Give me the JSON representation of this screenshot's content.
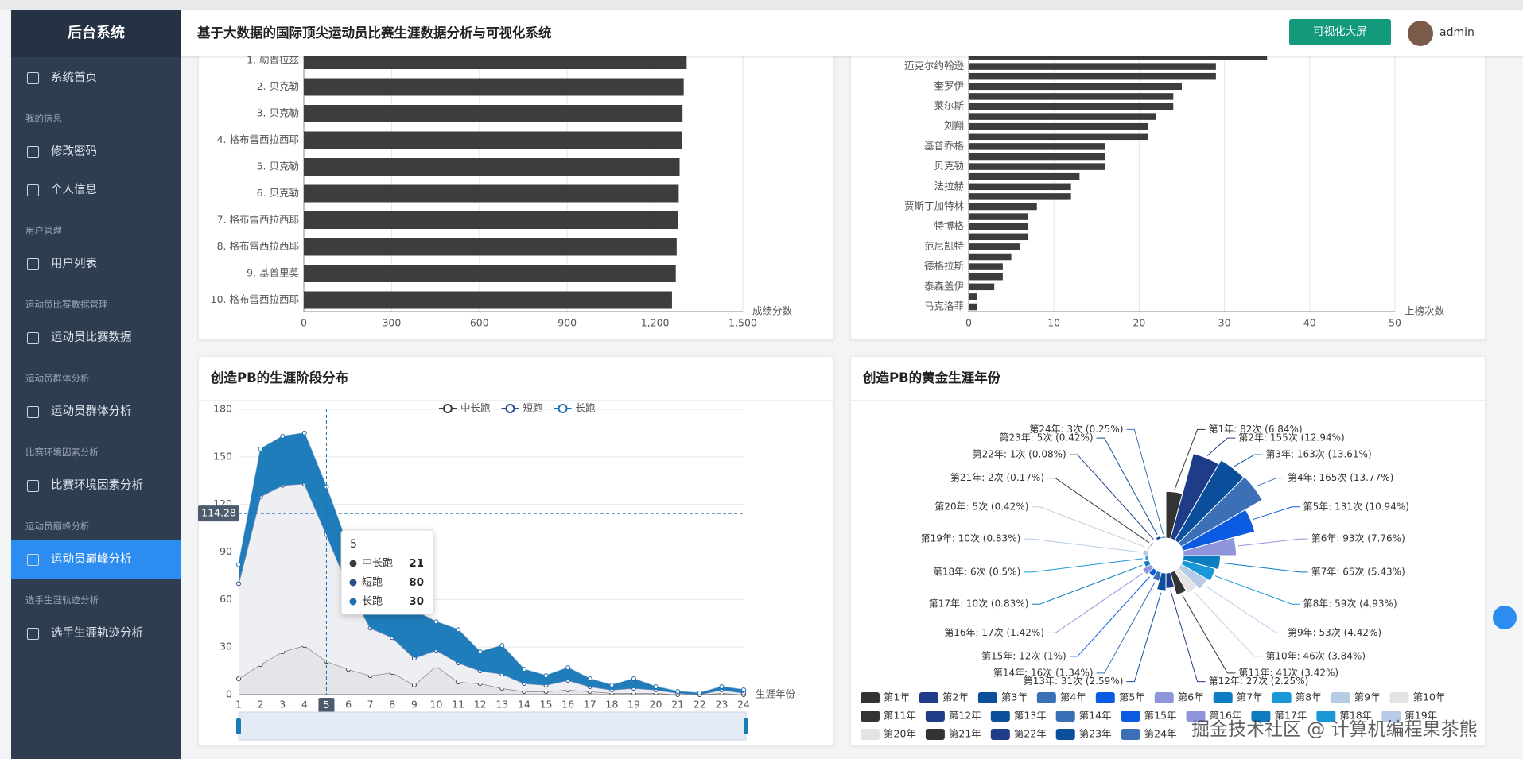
{
  "sidebar": {
    "title": "后台系统",
    "menu": [
      {
        "kind": "item",
        "label": "系统首页"
      },
      {
        "kind": "section",
        "label": "我的信息"
      },
      {
        "kind": "item",
        "label": "修改密码"
      },
      {
        "kind": "item",
        "label": "个人信息"
      },
      {
        "kind": "section",
        "label": "用户管理"
      },
      {
        "kind": "item",
        "label": "用户列表"
      },
      {
        "kind": "section",
        "label": "运动员比赛数据管理"
      },
      {
        "kind": "item",
        "label": "运动员比赛数据"
      },
      {
        "kind": "section",
        "label": "运动员群体分析"
      },
      {
        "kind": "item",
        "label": "运动员群体分析"
      },
      {
        "kind": "section",
        "label": "比赛环境因素分析"
      },
      {
        "kind": "item",
        "label": "比赛环境因素分析"
      },
      {
        "kind": "section",
        "label": "运动员巅峰分析"
      },
      {
        "kind": "item",
        "label": "运动员巅峰分析",
        "active": true
      },
      {
        "kind": "section",
        "label": "选手生涯轨迹分析"
      },
      {
        "kind": "item",
        "label": "选手生涯轨迹分析"
      }
    ]
  },
  "header": {
    "title": "基于大数据的国际顶尖运动员比赛生涯数据分析与可视化系统",
    "button": "可视化大屏",
    "user": "admin"
  },
  "watermark": "掘金技术社区 @ 计算机编程果茶熊",
  "chart_data": [
    {
      "type": "hbar",
      "categories": [
        "1. 勒普拉兹",
        "2. 贝克勒",
        "3. 贝克勒",
        "4. 格布雷西拉西耶",
        "5. 贝克勒",
        "6. 贝克勒",
        "7. 格布雷西拉西耶",
        "8. 格布雷西拉西耶",
        "9. 基普里莫",
        "10. 格布雷西拉西耶"
      ],
      "values": [
        1308,
        1298,
        1294,
        1291,
        1284,
        1281,
        1278,
        1274,
        1271,
        1258
      ],
      "color": "#3d3d3d",
      "xlim": [
        0,
        1500
      ],
      "xticks": [
        0,
        300,
        600,
        900,
        {
          "value": 1200,
          "label": "1,200"
        },
        {
          "value": 1500,
          "label": "1,500"
        }
      ],
      "x_label": "成绩分数",
      "grid": true
    },
    {
      "type": "hbar",
      "categories": [
        null,
        "迈克尔约翰逊",
        null,
        "奎罗伊",
        null,
        "莱尔斯",
        null,
        "刘翔",
        null,
        "基普乔格",
        null,
        "贝克勒",
        null,
        "法拉赫",
        null,
        "贾斯丁加特林",
        null,
        "特博格",
        null,
        "范尼凯特",
        null,
        "德格拉斯",
        null,
        "泰森盖伊",
        null,
        "马克洛菲"
      ],
      "values": [
        35,
        29,
        29,
        25,
        24,
        24,
        22,
        21,
        21,
        16,
        16,
        16,
        13,
        12,
        12,
        8,
        7,
        7,
        7,
        6,
        5,
        4,
        4,
        3,
        1,
        1
      ],
      "color": "#3d3d3d",
      "xlim": [
        0,
        50
      ],
      "xticks": [
        0,
        10,
        20,
        30,
        40,
        50
      ],
      "x_label": "上榜次数",
      "grid": true
    },
    {
      "type": "area",
      "title": "创造PB的生涯阶段分布",
      "stacked": true,
      "categories": [
        "1",
        "2",
        "3",
        "4",
        "5",
        "6",
        "7",
        "8",
        "9",
        "10",
        "11",
        "12",
        "13",
        "14",
        "15",
        "16",
        "17",
        "18",
        "19",
        "20",
        "21",
        "22",
        "23",
        "24"
      ],
      "series": [
        {
          "name": "中长跑",
          "color": "#3a3a3a",
          "area_color": "#e4e4e9",
          "values": [
            10,
            19,
            27,
            31,
            21,
            16,
            12,
            14,
            6,
            18,
            8,
            7,
            4,
            2,
            2,
            3,
            2,
            1,
            1,
            1,
            0,
            0,
            1,
            0
          ]
        },
        {
          "name": "短跑",
          "color": "#2d4a8a",
          "area_color": "#eeeff3",
          "values": [
            60,
            106,
            105,
            102,
            80,
            52,
            30,
            22,
            17,
            10,
            12,
            8,
            9,
            5,
            4,
            6,
            3,
            2,
            3,
            2,
            1,
            0,
            2,
            1
          ]
        },
        {
          "name": "长跑",
          "color": "#1a6fb0",
          "area_color": "#1f7dbb",
          "values": [
            12,
            30,
            31,
            32,
            30,
            25,
            23,
            23,
            30,
            18,
            21,
            12,
            18,
            9,
            6,
            8,
            5,
            3,
            6,
            2,
            1,
            1,
            2,
            2
          ]
        }
      ],
      "ylim": [
        0,
        180
      ],
      "yticks": [
        0,
        30,
        60,
        90,
        120,
        150,
        180
      ],
      "x_label": "生涯年份",
      "grid": true,
      "tooltip_index": 4,
      "pointer_value": 114.28
    },
    {
      "type": "rose",
      "title": "创造PB的黄金生涯年份",
      "categories": [
        "第1年",
        "第2年",
        "第3年",
        "第4年",
        "第5年",
        "第6年",
        "第7年",
        "第8年",
        "第9年",
        "第10年",
        "第11年",
        "第12年",
        "第13年",
        "第14年",
        "第15年",
        "第16年",
        "第17年",
        "第18年",
        "第19年",
        "第20年",
        "第21年",
        "第22年",
        "第23年",
        "第24年"
      ],
      "values": [
        82,
        155,
        163,
        165,
        131,
        93,
        65,
        59,
        53,
        46,
        41,
        27,
        31,
        16,
        12,
        17,
        10,
        6,
        10,
        5,
        2,
        1,
        5,
        3
      ],
      "value_labels": [
        "第1年: 82次 (6.84%)",
        "第2年: 155次 (12.94%)",
        "第3年: 163次 (13.61%)",
        "第4年: 165次 (13.77%)",
        "第5年: 131次 (10.94%)",
        "第6年: 93次 (7.76%)",
        "第7年: 65次 (5.43%)",
        "第8年: 59次 (4.93%)",
        "第9年: 53次 (4.42%)",
        "第10年: 46次 (3.84%)",
        "第11年: 41次 (3.42%)",
        "第12年: 27次 (2.25%)",
        "第13年: 31次 (2.59%)",
        "第14年: 16次 (1.34%)",
        "第15年: 12次 (1%)",
        "第16年: 17次 (1.42%)",
        "第17年: 10次 (0.83%)",
        "第18年: 6次 (0.5%)",
        "第19年: 10次 (0.83%)",
        "第20年: 5次 (0.42%)",
        "第21年: 2次 (0.17%)",
        "第22年: 1次 (0.08%)",
        "第23年: 5次 (0.42%)",
        "第24年: 3次 (0.25%)"
      ],
      "colors": [
        "#333333",
        "#1f3c88",
        "#0b4f9c",
        "#3b6fb6",
        "#0a5be0",
        "#8f95db",
        "#0e7cc1",
        "#1a97d6",
        "#b8cbe6",
        "#e3e3e3",
        "#333333",
        "#1f3c88",
        "#0b4f9c",
        "#3b6fb6",
        "#0a5be0",
        "#8f95db",
        "#0e7cc1",
        "#1a97d6",
        "#b8cbe6",
        "#e3e3e3",
        "#333333",
        "#1f3c88",
        "#0b4f9c",
        "#3b6fb6"
      ]
    }
  ]
}
